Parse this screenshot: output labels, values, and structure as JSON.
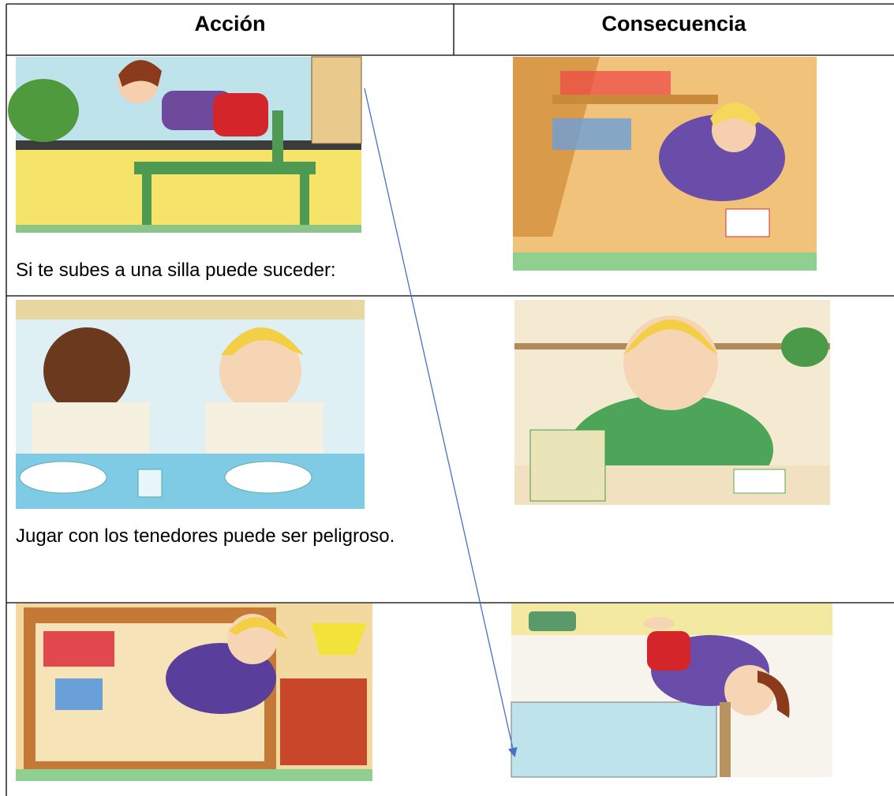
{
  "table": {
    "headers": [
      "Acción",
      "Consecuencia"
    ],
    "action_texts": [
      "Si te subes a una silla puede suceder:",
      "Jugar con los tenedores puede ser peligroso."
    ]
  }
}
